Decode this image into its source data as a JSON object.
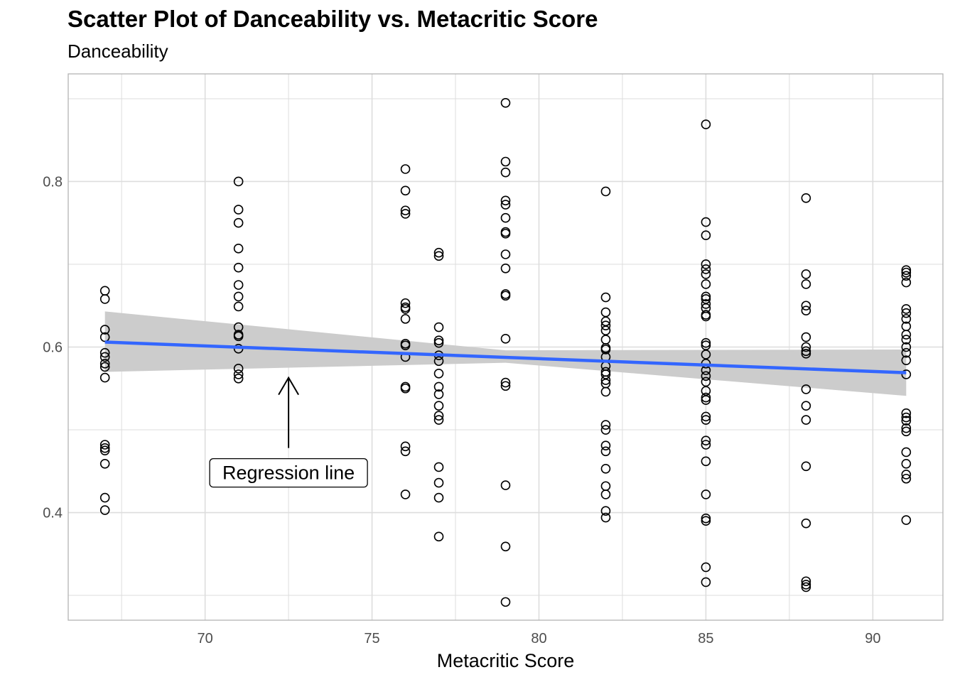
{
  "chart_data": {
    "type": "scatter",
    "title": "Scatter Plot of Danceability vs. Metacritic Score",
    "subtitle": "Danceability",
    "xlabel": "Metacritic Score",
    "ylabel": "",
    "xlim": [
      65.9,
      92.1
    ],
    "ylim": [
      0.27,
      0.93
    ],
    "x_ticks": [
      70,
      75,
      80,
      85,
      90
    ],
    "y_ticks": [
      0.4,
      0.6,
      0.8
    ],
    "grid": true,
    "points": [
      {
        "x": 67,
        "y": [
          0.668,
          0.658,
          0.621,
          0.612,
          0.593,
          0.588,
          0.58,
          0.576,
          0.563,
          0.482,
          0.478,
          0.475,
          0.459,
          0.418,
          0.403
        ]
      },
      {
        "x": 71,
        "y": [
          0.8,
          0.766,
          0.75,
          0.719,
          0.696,
          0.675,
          0.661,
          0.649,
          0.624,
          0.615,
          0.613,
          0.598,
          0.574,
          0.567,
          0.562
        ]
      },
      {
        "x": 76,
        "y": [
          0.815,
          0.789,
          0.765,
          0.761,
          0.653,
          0.648,
          0.646,
          0.634,
          0.604,
          0.602,
          0.588,
          0.552,
          0.55,
          0.48,
          0.474,
          0.422
        ]
      },
      {
        "x": 77,
        "y": [
          0.714,
          0.71,
          0.624,
          0.608,
          0.605,
          0.59,
          0.583,
          0.568,
          0.552,
          0.543,
          0.529,
          0.517,
          0.512,
          0.455,
          0.436,
          0.418,
          0.371
        ]
      },
      {
        "x": 79,
        "y": [
          0.895,
          0.824,
          0.811,
          0.777,
          0.772,
          0.756,
          0.739,
          0.737,
          0.712,
          0.695,
          0.664,
          0.662,
          0.61,
          0.557,
          0.553,
          0.433,
          0.359,
          0.292
        ]
      },
      {
        "x": 82,
        "y": [
          0.788,
          0.66,
          0.642,
          0.631,
          0.626,
          0.62,
          0.609,
          0.599,
          0.597,
          0.588,
          0.577,
          0.57,
          0.567,
          0.56,
          0.556,
          0.546,
          0.506,
          0.5,
          0.481,
          0.474,
          0.453,
          0.432,
          0.422,
          0.402,
          0.394
        ]
      },
      {
        "x": 85,
        "y": [
          0.869,
          0.751,
          0.735,
          0.7,
          0.694,
          0.688,
          0.676,
          0.661,
          0.658,
          0.652,
          0.647,
          0.639,
          0.637,
          0.605,
          0.602,
          0.591,
          0.58,
          0.572,
          0.565,
          0.558,
          0.547,
          0.539,
          0.536,
          0.516,
          0.512,
          0.487,
          0.482,
          0.462,
          0.422,
          0.393,
          0.39,
          0.334,
          0.316
        ]
      },
      {
        "x": 88,
        "y": [
          0.78,
          0.688,
          0.676,
          0.65,
          0.644,
          0.612,
          0.6,
          0.595,
          0.592,
          0.549,
          0.529,
          0.512,
          0.456,
          0.387,
          0.317,
          0.313,
          0.31
        ]
      },
      {
        "x": 91,
        "y": [
          0.693,
          0.69,
          0.686,
          0.678,
          0.646,
          0.641,
          0.634,
          0.625,
          0.615,
          0.609,
          0.6,
          0.593,
          0.584,
          0.567,
          0.52,
          0.515,
          0.511,
          0.502,
          0.498,
          0.473,
          0.459,
          0.446,
          0.441,
          0.391
        ]
      }
    ],
    "regression": {
      "x": [
        67,
        91
      ],
      "y": [
        0.606,
        0.569
      ],
      "color": "#3366FF"
    },
    "confidence_band": {
      "x": [
        67,
        79,
        91
      ],
      "lower": [
        0.57,
        0.581,
        0.541
      ],
      "upper": [
        0.643,
        0.596,
        0.597
      ],
      "color": "#cccccc"
    },
    "annotation": {
      "label": "Regression line",
      "arrow_x": 72.5,
      "arrow_y_from": 0.478,
      "arrow_y_to": 0.563
    },
    "colors": {
      "point_stroke": "#000000",
      "grid": "#dddddd",
      "panel_border": "#b3b3b3",
      "regression": "#3366FF",
      "band": "#cccccc"
    }
  }
}
